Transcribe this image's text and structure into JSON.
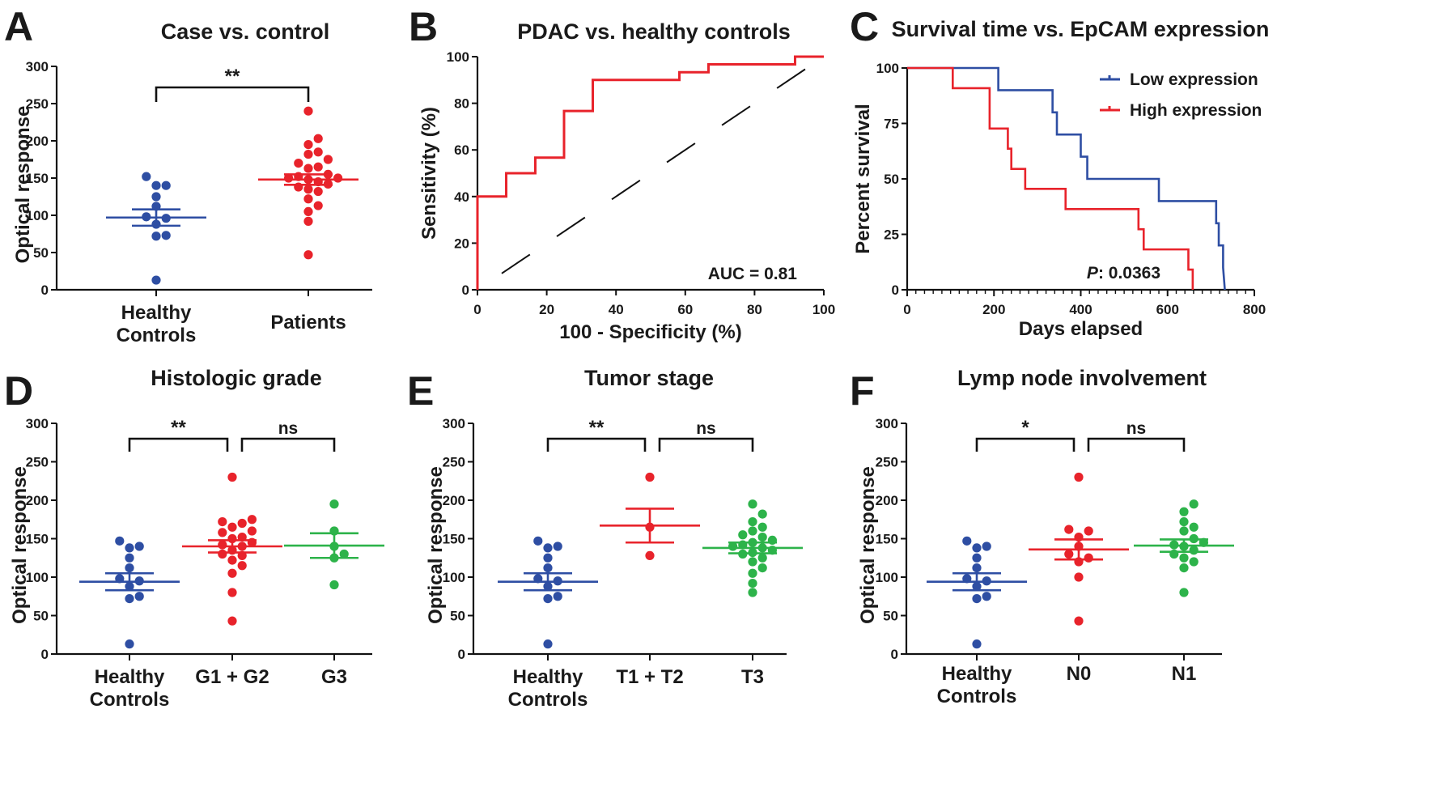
{
  "figure": {
    "colors": {
      "healthy": "#2e4ea3",
      "red": "#e8232b",
      "green": "#2db34a",
      "black": "#111111",
      "low": "#2e4ea3",
      "high": "#e8232b"
    }
  },
  "chart_data": [
    {
      "id": "A",
      "type": "scatter",
      "letter": "A",
      "title": "Case vs. control",
      "ylabel": "Optical response",
      "ylim": [
        0,
        300
      ],
      "yticks": [
        0,
        50,
        100,
        150,
        200,
        250,
        300
      ],
      "groups": [
        {
          "label": [
            "Healthy",
            "Controls"
          ],
          "color": "healthy",
          "mean": 97,
          "sem": 11,
          "points": [
            13,
            72,
            73,
            88,
            96,
            98,
            112,
            125,
            140,
            140,
            152
          ]
        },
        {
          "label": [
            "Patients"
          ],
          "color": "red",
          "mean": 148,
          "sem": 7,
          "points": [
            47,
            92,
            105,
            113,
            122,
            132,
            135,
            138,
            142,
            145,
            148,
            150,
            150,
            152,
            155,
            163,
            165,
            170,
            175,
            182,
            185,
            195,
            203,
            240
          ]
        }
      ],
      "significance": [
        {
          "from": 0,
          "to": 1,
          "label": "**"
        }
      ]
    },
    {
      "id": "B",
      "type": "line",
      "letter": "B",
      "title": "PDAC vs. healthy controls",
      "xlabel": "100 - Specificity (%)",
      "ylabel": "Sensitivity (%)",
      "xlim": [
        0,
        100
      ],
      "ylim": [
        0,
        100
      ],
      "xticks": [
        0,
        20,
        40,
        60,
        80,
        100
      ],
      "yticks": [
        0,
        20,
        40,
        60,
        80,
        100
      ],
      "series": [
        {
          "name": "ROC",
          "color": "red",
          "style": "step",
          "x": [
            0,
            0,
            8.3,
            8.3,
            16.7,
            16.7,
            25,
            25,
            33.3,
            33.3,
            58.3,
            58.3,
            66.7,
            66.7,
            91.7,
            91.7,
            100
          ],
          "y": [
            0,
            40,
            40,
            50,
            50,
            56.7,
            56.7,
            76.7,
            76.7,
            90,
            90,
            93.3,
            93.3,
            96.7,
            96.7,
            100,
            100
          ]
        },
        {
          "name": "Reference",
          "color": "black",
          "style": "dashed",
          "x": [
            7,
            100
          ],
          "y": [
            7,
            100
          ]
        }
      ],
      "annotation": "AUC = 0.81"
    },
    {
      "id": "C",
      "type": "line",
      "letter": "C",
      "title": "Survival time vs. EpCAM expression",
      "xlabel": "Days elapsed",
      "ylabel": "Percent survival",
      "xlim": [
        0,
        800
      ],
      "ylim": [
        0,
        100
      ],
      "xticks": [
        0,
        200,
        400,
        600,
        800
      ],
      "yticks": [
        0,
        25,
        50,
        75,
        100
      ],
      "series": [
        {
          "name": "Low expression",
          "color": "low",
          "x": [
            0,
            210,
            210,
            335,
            335,
            345,
            345,
            400,
            400,
            415,
            415,
            580,
            580,
            712,
            712,
            718,
            718,
            728,
            728,
            732
          ],
          "y": [
            100,
            100,
            90,
            90,
            80,
            80,
            70,
            70,
            60,
            60,
            50,
            50,
            40,
            40,
            30,
            30,
            20,
            20,
            10,
            0
          ]
        },
        {
          "name": "High expression",
          "color": "high",
          "x": [
            0,
            105,
            105,
            190,
            190,
            232,
            232,
            240,
            240,
            272,
            272,
            365,
            365,
            533,
            533,
            545,
            545,
            648,
            648,
            658,
            658
          ],
          "y": [
            100,
            100,
            90.9,
            90.9,
            72.7,
            72.7,
            63.6,
            63.6,
            54.5,
            54.5,
            45.5,
            45.5,
            36.4,
            36.4,
            27.3,
            27.3,
            18.2,
            18.2,
            9.1,
            9.1,
            0
          ]
        }
      ],
      "p_label": "P",
      "p_value": ": 0.0363"
    },
    {
      "id": "D",
      "type": "scatter",
      "letter": "D",
      "title": "Histologic grade",
      "ylabel": "Optical response",
      "ylim": [
        0,
        300
      ],
      "yticks": [
        0,
        50,
        100,
        150,
        200,
        250,
        300
      ],
      "groups": [
        {
          "label": [
            "Healthy",
            "Controls"
          ],
          "color": "healthy",
          "mean": 94,
          "sem": 11,
          "points": [
            13,
            72,
            75,
            88,
            95,
            98,
            112,
            125,
            138,
            140,
            147
          ]
        },
        {
          "label": [
            "G1 + G2"
          ],
          "color": "red",
          "mean": 140,
          "sem": 8,
          "points": [
            43,
            80,
            105,
            115,
            122,
            128,
            130,
            135,
            140,
            142,
            145,
            150,
            152,
            158,
            160,
            165,
            170,
            172,
            175,
            230
          ]
        },
        {
          "label": [
            "G3"
          ],
          "color": "green",
          "mean": 141,
          "sem": 16,
          "points": [
            90,
            125,
            130,
            140,
            160,
            195
          ]
        }
      ],
      "significance": [
        {
          "from": 0,
          "to": 1,
          "label": "**"
        },
        {
          "from": 1,
          "to": 2,
          "label": "ns"
        }
      ]
    },
    {
      "id": "E",
      "type": "scatter",
      "letter": "E",
      "title": "Tumor stage",
      "ylabel": "Optical response",
      "ylim": [
        0,
        300
      ],
      "yticks": [
        0,
        50,
        100,
        150,
        200,
        250,
        300
      ],
      "groups": [
        {
          "label": [
            "Healthy",
            "Controls"
          ],
          "color": "healthy",
          "mean": 94,
          "sem": 11,
          "points": [
            13,
            72,
            75,
            88,
            95,
            98,
            112,
            125,
            138,
            140,
            147
          ]
        },
        {
          "label": [
            "T1 + T2"
          ],
          "color": "red",
          "mean": 167,
          "sem": 22,
          "points": [
            128,
            165,
            230
          ]
        },
        {
          "label": [
            "T3"
          ],
          "color": "green",
          "mean": 138,
          "sem": 7,
          "points": [
            80,
            92,
            105,
            112,
            120,
            125,
            130,
            132,
            135,
            138,
            140,
            142,
            145,
            148,
            152,
            155,
            160,
            165,
            172,
            182,
            195
          ]
        }
      ],
      "significance": [
        {
          "from": 0,
          "to": 1,
          "label": "**"
        },
        {
          "from": 1,
          "to": 2,
          "label": "ns"
        }
      ]
    },
    {
      "id": "F",
      "type": "scatter",
      "letter": "F",
      "title": "Lymp node involvement",
      "ylabel": "Optical response",
      "ylim": [
        0,
        300
      ],
      "yticks": [
        0,
        50,
        100,
        150,
        200,
        250,
        300
      ],
      "groups": [
        {
          "label": [
            "Healthy",
            "Controls"
          ],
          "color": "healthy",
          "mean": 94,
          "sem": 11,
          "points": [
            13,
            72,
            75,
            88,
            95,
            98,
            112,
            125,
            138,
            140,
            147
          ]
        },
        {
          "label": [
            "N0"
          ],
          "color": "red",
          "mean": 136,
          "sem": 13,
          "points": [
            43,
            100,
            120,
            125,
            130,
            140,
            152,
            160,
            162,
            230
          ]
        },
        {
          "label": [
            "N1"
          ],
          "color": "green",
          "mean": 141,
          "sem": 8,
          "points": [
            80,
            112,
            120,
            125,
            130,
            135,
            140,
            142,
            145,
            150,
            160,
            165,
            172,
            185,
            195
          ]
        }
      ],
      "significance": [
        {
          "from": 0,
          "to": 1,
          "label": "*"
        },
        {
          "from": 1,
          "to": 2,
          "label": "ns"
        }
      ]
    }
  ]
}
